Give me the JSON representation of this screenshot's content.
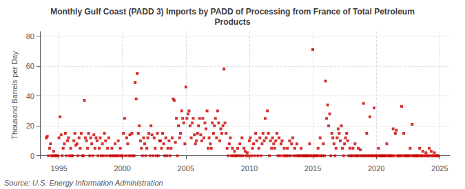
{
  "chart_data": {
    "type": "scatter",
    "title": "Monthly Gulf Coast (PADD 3) Imports by PADD of Processing from France of Total Petroleum\nProducts",
    "ylabel": "Thousand Barrels per Day",
    "source": "Source: U.S. Energy Information Administration",
    "color": "#cc0000",
    "marker": "square",
    "grid": true,
    "xlim": [
      1993.5,
      2025.8
    ],
    "ylim": [
      -2,
      83
    ],
    "xticks": [
      1995,
      2000,
      2005,
      2010,
      2015,
      2020,
      2025
    ],
    "yticks": [
      0,
      20,
      40,
      60,
      80
    ],
    "x": [
      1994.0,
      1994.08,
      1994.17,
      1994.25,
      1994.33,
      1994.42,
      1994.5,
      1994.58,
      1994.67,
      1994.75,
      1994.83,
      1994.92,
      1995.0,
      1995.08,
      1995.17,
      1995.25,
      1995.33,
      1995.42,
      1995.5,
      1995.58,
      1995.67,
      1995.75,
      1995.83,
      1995.92,
      1996.0,
      1996.08,
      1996.17,
      1996.25,
      1996.33,
      1996.42,
      1996.5,
      1996.58,
      1996.67,
      1996.75,
      1996.83,
      1996.92,
      1997.0,
      1997.08,
      1997.17,
      1997.25,
      1997.33,
      1997.42,
      1997.5,
      1997.58,
      1997.67,
      1997.75,
      1997.83,
      1997.92,
      1998.0,
      1998.08,
      1998.17,
      1998.25,
      1998.33,
      1998.42,
      1998.5,
      1998.58,
      1998.67,
      1998.75,
      1998.83,
      1998.92,
      1999.0,
      1999.08,
      1999.17,
      1999.25,
      1999.33,
      1999.42,
      1999.5,
      1999.58,
      1999.67,
      1999.75,
      1999.83,
      1999.92,
      2000.0,
      2000.08,
      2000.17,
      2000.25,
      2000.33,
      2000.42,
      2000.5,
      2000.58,
      2000.67,
      2000.75,
      2000.83,
      2000.92,
      2001.0,
      2001.08,
      2001.17,
      2001.25,
      2001.33,
      2001.42,
      2001.5,
      2001.58,
      2001.67,
      2001.75,
      2001.83,
      2001.92,
      2002.0,
      2002.08,
      2002.17,
      2002.25,
      2002.33,
      2002.42,
      2002.5,
      2002.58,
      2002.67,
      2002.75,
      2002.83,
      2002.92,
      2003.0,
      2003.08,
      2003.17,
      2003.25,
      2003.33,
      2003.42,
      2003.5,
      2003.58,
      2003.67,
      2003.75,
      2003.83,
      2003.92,
      2004.0,
      2004.08,
      2004.17,
      2004.25,
      2004.33,
      2004.42,
      2004.5,
      2004.58,
      2004.67,
      2004.75,
      2004.83,
      2004.92,
      2005.0,
      2005.08,
      2005.17,
      2005.25,
      2005.33,
      2005.42,
      2005.5,
      2005.58,
      2005.67,
      2005.75,
      2005.83,
      2005.92,
      2006.0,
      2006.08,
      2006.17,
      2006.25,
      2006.33,
      2006.42,
      2006.5,
      2006.58,
      2006.67,
      2006.75,
      2006.83,
      2006.92,
      2007.0,
      2007.08,
      2007.17,
      2007.25,
      2007.33,
      2007.42,
      2007.5,
      2007.58,
      2007.67,
      2007.75,
      2007.83,
      2007.92,
      2008.0,
      2008.08,
      2008.17,
      2008.25,
      2008.33,
      2008.42,
      2008.5,
      2008.58,
      2008.67,
      2008.75,
      2008.83,
      2008.92,
      2009.0,
      2009.08,
      2009.17,
      2009.25,
      2009.33,
      2009.42,
      2009.5,
      2009.58,
      2009.67,
      2009.75,
      2009.83,
      2009.92,
      2010.0,
      2010.08,
      2010.17,
      2010.25,
      2010.33,
      2010.42,
      2010.5,
      2010.58,
      2010.67,
      2010.75,
      2010.83,
      2010.92,
      2011.0,
      2011.08,
      2011.17,
      2011.25,
      2011.33,
      2011.42,
      2011.5,
      2011.58,
      2011.67,
      2011.75,
      2011.83,
      2011.92,
      2012.0,
      2012.08,
      2012.17,
      2012.25,
      2012.33,
      2012.42,
      2012.5,
      2012.58,
      2012.67,
      2012.75,
      2012.83,
      2012.92,
      2013.0,
      2013.08,
      2013.17,
      2013.25,
      2013.33,
      2013.42,
      2013.5,
      2013.58,
      2013.67,
      2013.75,
      2013.83,
      2013.92,
      2014.0,
      2014.08,
      2014.17,
      2014.25,
      2014.33,
      2014.42,
      2014.5,
      2014.58,
      2014.67,
      2014.75,
      2014.83,
      2014.92,
      2015.0,
      2015.08,
      2015.17,
      2015.25,
      2015.33,
      2015.42,
      2015.5,
      2015.58,
      2015.67,
      2015.75,
      2015.83,
      2015.92,
      2016.0,
      2016.08,
      2016.17,
      2016.25,
      2016.33,
      2016.42,
      2016.5,
      2016.58,
      2016.67,
      2016.75,
      2016.83,
      2016.92,
      2017.0,
      2017.08,
      2017.17,
      2017.25,
      2017.33,
      2017.42,
      2017.5,
      2017.58,
      2017.67,
      2017.75,
      2017.83,
      2017.92,
      2018.0,
      2018.08,
      2018.17,
      2018.25,
      2018.33,
      2018.42,
      2018.5,
      2018.58,
      2018.67,
      2018.75,
      2018.83,
      2018.92,
      2019.0,
      2019.08,
      2019.17,
      2019.25,
      2019.33,
      2019.42,
      2019.5,
      2019.58,
      2019.67,
      2019.75,
      2019.83,
      2019.92,
      2020.0,
      2020.08,
      2020.17,
      2020.25,
      2020.33,
      2020.42,
      2020.5,
      2020.58,
      2020.67,
      2020.75,
      2020.83,
      2020.92,
      2021.0,
      2021.08,
      2021.17,
      2021.25,
      2021.33,
      2021.42,
      2021.5,
      2021.58,
      2021.67,
      2021.75,
      2021.83,
      2021.92,
      2022.0,
      2022.08,
      2022.17,
      2022.25,
      2022.33,
      2022.42,
      2022.5,
      2022.58,
      2022.67,
      2022.75,
      2022.83,
      2022.92,
      2023.0,
      2023.08,
      2023.17,
      2023.25,
      2023.33,
      2023.42,
      2023.5,
      2023.58,
      2023.67,
      2023.75,
      2023.83,
      2023.92,
      2024.0,
      2024.08,
      2024.17,
      2024.25,
      2024.33,
      2024.42,
      2024.5,
      2024.58,
      2024.67,
      2024.75,
      2024.83,
      2024.92
    ],
    "values": [
      12,
      13,
      0,
      5,
      8,
      0,
      0,
      3,
      0,
      0,
      0,
      0,
      12,
      26,
      14,
      0,
      5,
      8,
      15,
      0,
      10,
      12,
      0,
      5,
      0,
      0,
      10,
      15,
      7,
      8,
      0,
      12,
      5,
      15,
      0,
      0,
      37,
      12,
      10,
      5,
      15,
      0,
      12,
      8,
      0,
      14,
      5,
      12,
      10,
      0,
      5,
      12,
      0,
      8,
      0,
      15,
      10,
      0,
      5,
      12,
      0,
      0,
      5,
      0,
      0,
      8,
      0,
      0,
      10,
      0,
      5,
      0,
      0,
      15,
      25,
      0,
      12,
      8,
      0,
      14,
      0,
      15,
      0,
      0,
      49,
      38,
      55,
      15,
      20,
      10,
      5,
      0,
      12,
      8,
      0,
      5,
      12,
      15,
      0,
      20,
      14,
      0,
      12,
      5,
      0,
      15,
      0,
      10,
      10,
      5,
      15,
      8,
      0,
      12,
      0,
      5,
      10,
      0,
      5,
      12,
      38,
      37,
      9,
      25,
      0,
      20,
      12,
      15,
      30,
      25,
      22,
      8,
      46,
      25,
      28,
      30,
      20,
      12,
      22,
      25,
      14,
      8,
      10,
      15,
      20,
      25,
      14,
      10,
      25,
      12,
      22,
      18,
      30,
      5,
      12,
      8,
      5,
      22,
      15,
      20,
      25,
      12,
      30,
      22,
      10,
      18,
      15,
      20,
      58,
      22,
      15,
      5,
      0,
      8,
      12,
      0,
      5,
      0,
      3,
      0,
      0,
      5,
      0,
      8,
      0,
      12,
      0,
      5,
      3,
      0,
      2,
      0,
      10,
      12,
      0,
      5,
      8,
      0,
      15,
      10,
      0,
      5,
      12,
      0,
      8,
      15,
      10,
      25,
      12,
      30,
      15,
      0,
      10,
      5,
      12,
      8,
      5,
      10,
      15,
      0,
      12,
      0,
      8,
      10,
      0,
      5,
      0,
      0,
      5,
      0,
      10,
      0,
      8,
      12,
      0,
      5,
      0,
      8,
      0,
      0,
      0,
      5,
      0,
      0,
      0,
      0,
      0,
      0,
      0,
      8,
      0,
      0,
      71,
      0,
      0,
      0,
      0,
      5,
      0,
      12,
      0,
      0,
      8,
      0,
      50,
      25,
      34,
      20,
      28,
      0,
      15,
      12,
      8,
      0,
      5,
      12,
      18,
      15,
      10,
      20,
      5,
      0,
      8,
      12,
      15,
      10,
      0,
      5,
      0,
      0,
      5,
      0,
      8,
      0,
      0,
      5,
      0,
      4,
      0,
      0,
      35,
      0,
      0,
      15,
      0,
      0,
      26,
      0,
      0,
      0,
      32,
      0,
      0,
      0,
      5,
      0,
      0,
      0,
      0,
      0,
      0,
      0,
      8,
      0,
      0,
      0,
      0,
      0,
      18,
      0,
      15,
      17,
      0,
      0,
      0,
      0,
      33,
      0,
      15,
      0,
      0,
      0,
      0,
      0,
      5,
      0,
      21,
      0,
      0,
      0,
      0,
      0,
      0,
      5,
      0,
      0,
      3,
      0,
      0,
      2,
      0,
      0,
      5,
      0,
      3,
      0,
      0,
      2,
      0,
      0,
      0,
      0
    ]
  }
}
